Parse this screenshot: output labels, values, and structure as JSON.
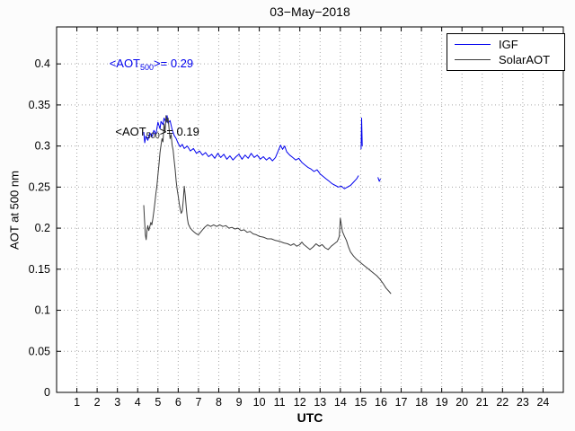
{
  "chart_data": {
    "type": "line",
    "title": "03−May−2018",
    "xlabel": "UTC",
    "ylabel": "AOT at 500 nm",
    "xlim": [
      0,
      25
    ],
    "ylim": [
      0,
      0.445
    ],
    "xticks": [
      1,
      2,
      3,
      4,
      5,
      6,
      7,
      8,
      9,
      10,
      11,
      12,
      13,
      14,
      15,
      16,
      17,
      18,
      19,
      20,
      21,
      22,
      23,
      24
    ],
    "yticks": [
      0,
      0.05,
      0.1,
      0.15,
      0.2,
      0.25,
      0.3,
      0.35,
      0.4
    ],
    "ytick_labels": [
      "0",
      "0.05",
      "0.1",
      "0.15",
      "0.2",
      "0.25",
      "0.3",
      "0.35",
      "0.4"
    ],
    "grid": true,
    "grid_style": "dotted",
    "colors": {
      "axis": "#000000",
      "grid": "#a6a6a6",
      "plot_bg": "#ffffff"
    },
    "legend": {
      "position": "top-right",
      "entries": [
        {
          "label": "IGF",
          "color": "#0000ee"
        },
        {
          "label": "SolarAOT",
          "color": "#3c3c3c"
        }
      ]
    },
    "annotations": [
      {
        "prefix": "<AOT",
        "sub": "500",
        "suffix": ">= 0.29",
        "x": 2.6,
        "y": 0.4,
        "color": "#0000ee"
      },
      {
        "prefix": "<AOT",
        "sub": "500",
        "suffix": ">= 0.19",
        "x": 2.9,
        "y": 0.317,
        "color": "#000000"
      }
    ],
    "series": [
      {
        "name": "IGF",
        "color": "#0000ee",
        "mean_aot_500": 0.29,
        "segments": [
          [
            [
              4.3,
              0.317
            ],
            [
              4.35,
              0.304
            ],
            [
              4.4,
              0.312
            ],
            [
              4.5,
              0.307
            ],
            [
              4.6,
              0.316
            ],
            [
              4.7,
              0.311
            ],
            [
              4.8,
              0.319
            ],
            [
              4.9,
              0.314
            ],
            [
              5.0,
              0.329
            ],
            [
              5.1,
              0.321
            ],
            [
              5.15,
              0.33
            ],
            [
              5.25,
              0.326
            ],
            [
              5.3,
              0.334
            ],
            [
              5.4,
              0.329
            ],
            [
              5.45,
              0.337
            ],
            [
              5.5,
              0.328
            ],
            [
              5.6,
              0.331
            ],
            [
              5.7,
              0.32
            ],
            [
              5.8,
              0.313
            ],
            [
              5.9,
              0.309
            ],
            [
              6.0,
              0.303
            ],
            [
              6.1,
              0.299
            ],
            [
              6.2,
              0.302
            ],
            [
              6.3,
              0.297
            ],
            [
              6.45,
              0.3
            ],
            [
              6.6,
              0.294
            ],
            [
              6.75,
              0.297
            ],
            [
              6.9,
              0.291
            ],
            [
              7.05,
              0.294
            ],
            [
              7.2,
              0.289
            ],
            [
              7.35,
              0.292
            ],
            [
              7.5,
              0.287
            ],
            [
              7.65,
              0.29
            ],
            [
              7.8,
              0.285
            ],
            [
              7.95,
              0.291
            ],
            [
              8.1,
              0.286
            ],
            [
              8.25,
              0.29
            ],
            [
              8.4,
              0.284
            ],
            [
              8.55,
              0.288
            ],
            [
              8.7,
              0.283
            ],
            [
              8.85,
              0.287
            ],
            [
              9.0,
              0.29
            ],
            [
              9.15,
              0.284
            ],
            [
              9.3,
              0.289
            ],
            [
              9.45,
              0.285
            ],
            [
              9.6,
              0.291
            ],
            [
              9.75,
              0.286
            ],
            [
              9.9,
              0.289
            ],
            [
              10.05,
              0.284
            ],
            [
              10.2,
              0.287
            ],
            [
              10.35,
              0.283
            ],
            [
              10.5,
              0.286
            ],
            [
              10.65,
              0.282
            ],
            [
              10.8,
              0.286
            ],
            [
              10.95,
              0.295
            ],
            [
              11.05,
              0.301
            ],
            [
              11.15,
              0.296
            ],
            [
              11.25,
              0.3
            ],
            [
              11.35,
              0.293
            ],
            [
              11.5,
              0.289
            ],
            [
              11.65,
              0.286
            ],
            [
              11.8,
              0.283
            ],
            [
              11.95,
              0.285
            ],
            [
              12.1,
              0.28
            ],
            [
              12.25,
              0.277
            ],
            [
              12.4,
              0.274
            ],
            [
              12.55,
              0.272
            ],
            [
              12.7,
              0.269
            ],
            [
              12.85,
              0.271
            ],
            [
              13.0,
              0.266
            ],
            [
              13.15,
              0.263
            ],
            [
              13.3,
              0.26
            ],
            [
              13.45,
              0.257
            ],
            [
              13.6,
              0.254
            ],
            [
              13.75,
              0.252
            ],
            [
              13.9,
              0.25
            ],
            [
              14.05,
              0.251
            ],
            [
              14.2,
              0.248
            ],
            [
              14.35,
              0.25
            ],
            [
              14.5,
              0.252
            ],
            [
              14.65,
              0.256
            ],
            [
              14.8,
              0.26
            ],
            [
              14.9,
              0.264
            ]
          ],
          [
            [
              15.02,
              0.296
            ],
            [
              15.05,
              0.334
            ],
            [
              15.08,
              0.3
            ]
          ],
          [
            [
              15.85,
              0.262
            ],
            [
              15.92,
              0.257
            ],
            [
              15.98,
              0.26
            ]
          ]
        ]
      },
      {
        "name": "SolarAOT",
        "color": "#3c3c3c",
        "mean_aot_500": 0.19,
        "segments": [
          [
            [
              4.3,
              0.228
            ],
            [
              4.34,
              0.209
            ],
            [
              4.38,
              0.192
            ],
            [
              4.42,
              0.186
            ],
            [
              4.46,
              0.197
            ],
            [
              4.5,
              0.203
            ],
            [
              4.55,
              0.197
            ],
            [
              4.6,
              0.202
            ],
            [
              4.65,
              0.207
            ],
            [
              4.7,
              0.204
            ],
            [
              4.75,
              0.212
            ],
            [
              4.8,
              0.221
            ],
            [
              4.85,
              0.231
            ],
            [
              4.9,
              0.242
            ],
            [
              4.95,
              0.252
            ],
            [
              5.0,
              0.265
            ],
            [
              5.05,
              0.277
            ],
            [
              5.1,
              0.292
            ],
            [
              5.15,
              0.301
            ],
            [
              5.2,
              0.309
            ],
            [
              5.25,
              0.305
            ],
            [
              5.3,
              0.327
            ],
            [
              5.35,
              0.317
            ],
            [
              5.4,
              0.337
            ],
            [
              5.45,
              0.329
            ],
            [
              5.5,
              0.334
            ],
            [
              5.55,
              0.321
            ],
            [
              5.6,
              0.309
            ],
            [
              5.65,
              0.314
            ],
            [
              5.7,
              0.301
            ],
            [
              5.75,
              0.295
            ],
            [
              5.8,
              0.283
            ],
            [
              5.85,
              0.271
            ],
            [
              5.9,
              0.257
            ],
            [
              5.95,
              0.247
            ],
            [
              6.0,
              0.239
            ],
            [
              6.05,
              0.23
            ],
            [
              6.1,
              0.223
            ],
            [
              6.15,
              0.218
            ],
            [
              6.2,
              0.221
            ],
            [
              6.25,
              0.234
            ],
            [
              6.3,
              0.251
            ],
            [
              6.35,
              0.239
            ],
            [
              6.4,
              0.224
            ],
            [
              6.45,
              0.212
            ],
            [
              6.5,
              0.205
            ],
            [
              6.6,
              0.2
            ],
            [
              6.7,
              0.197
            ],
            [
              6.8,
              0.195
            ],
            [
              6.9,
              0.193
            ],
            [
              7.0,
              0.192
            ],
            [
              7.1,
              0.195
            ],
            [
              7.2,
              0.198
            ],
            [
              7.3,
              0.201
            ],
            [
              7.45,
              0.204
            ],
            [
              7.6,
              0.202
            ],
            [
              7.75,
              0.204
            ],
            [
              7.9,
              0.202
            ],
            [
              8.05,
              0.204
            ],
            [
              8.2,
              0.202
            ],
            [
              8.35,
              0.203
            ],
            [
              8.5,
              0.2
            ],
            [
              8.65,
              0.201
            ],
            [
              8.8,
              0.199
            ],
            [
              8.95,
              0.2
            ],
            [
              9.1,
              0.197
            ],
            [
              9.25,
              0.198
            ],
            [
              9.4,
              0.195
            ],
            [
              9.55,
              0.196
            ],
            [
              9.7,
              0.193
            ],
            [
              9.85,
              0.192
            ],
            [
              10.0,
              0.19
            ],
            [
              10.2,
              0.189
            ],
            [
              10.4,
              0.187
            ],
            [
              10.6,
              0.187
            ],
            [
              10.8,
              0.185
            ],
            [
              11.0,
              0.184
            ],
            [
              11.2,
              0.182
            ],
            [
              11.4,
              0.181
            ],
            [
              11.55,
              0.179
            ],
            [
              11.7,
              0.181
            ],
            [
              11.85,
              0.178
            ],
            [
              12.0,
              0.18
            ],
            [
              12.1,
              0.183
            ],
            [
              12.2,
              0.18
            ],
            [
              12.35,
              0.177
            ],
            [
              12.5,
              0.174
            ],
            [
              12.65,
              0.177
            ],
            [
              12.8,
              0.181
            ],
            [
              12.95,
              0.178
            ],
            [
              13.1,
              0.18
            ],
            [
              13.25,
              0.176
            ],
            [
              13.4,
              0.174
            ],
            [
              13.55,
              0.178
            ],
            [
              13.7,
              0.181
            ],
            [
              13.85,
              0.184
            ],
            [
              13.95,
              0.19
            ],
            [
              14.0,
              0.212
            ],
            [
              14.05,
              0.204
            ],
            [
              14.1,
              0.196
            ],
            [
              14.2,
              0.19
            ],
            [
              14.3,
              0.185
            ],
            [
              14.4,
              0.177
            ],
            [
              14.5,
              0.171
            ],
            [
              14.65,
              0.166
            ],
            [
              14.8,
              0.162
            ],
            [
              15.0,
              0.158
            ],
            [
              15.2,
              0.154
            ],
            [
              15.4,
              0.15
            ],
            [
              15.6,
              0.146
            ],
            [
              15.8,
              0.142
            ],
            [
              15.95,
              0.138
            ],
            [
              16.1,
              0.133
            ],
            [
              16.25,
              0.127
            ],
            [
              16.4,
              0.123
            ],
            [
              16.5,
              0.12
            ]
          ]
        ]
      }
    ]
  }
}
